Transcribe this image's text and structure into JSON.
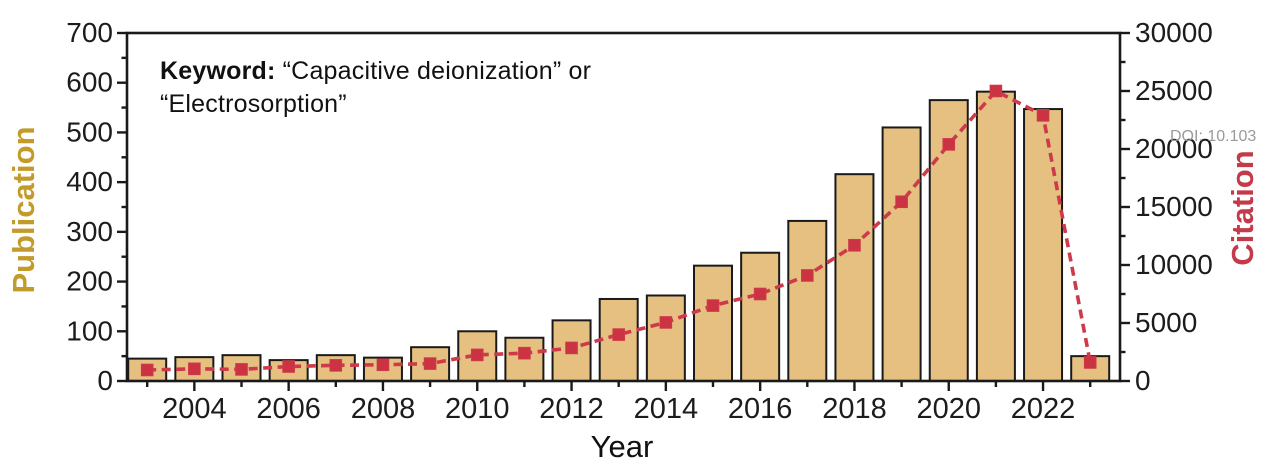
{
  "figure": {
    "annotation": {
      "bold": "Keyword:",
      "line1_rest": " “Capacitive deionization” or",
      "line2": "“Electrosorption”"
    },
    "watermark": "DOI: 10.103",
    "colors": {
      "background": "#ffffff",
      "frame": "#1a1a1a",
      "tick_label": "#1c1c1c",
      "bar_fill": "#e5c080",
      "bar_edge": "#1a1a1a",
      "line": "#ce3a4a",
      "marker_fill": "#cb3343",
      "left_label": "#c39b2a",
      "right_label": "#c43a4b",
      "watermark": "#9a9a9a"
    }
  },
  "chart_data": {
    "type": "bar",
    "subtype": "combo-bar-line-dual-axis",
    "title": "Keyword: “Capacitive deionization” or “Electrosorption”",
    "xlabel": "Year",
    "categories": [
      2003,
      2004,
      2005,
      2006,
      2007,
      2008,
      2009,
      2010,
      2011,
      2012,
      2013,
      2014,
      2015,
      2016,
      2017,
      2018,
      2019,
      2020,
      2021,
      2022,
      2023
    ],
    "series": [
      {
        "name": "Publication",
        "type": "bar",
        "axis": "left",
        "values": [
          45,
          48,
          52,
          42,
          52,
          47,
          68,
          100,
          87,
          122,
          165,
          172,
          232,
          258,
          322,
          416,
          510,
          565,
          582,
          547,
          50
        ]
      },
      {
        "name": "Citation",
        "type": "line",
        "axis": "right",
        "marker": "square",
        "line_style": "dashed",
        "values": [
          950,
          1050,
          1000,
          1250,
          1350,
          1400,
          1500,
          2250,
          2400,
          2850,
          4000,
          5050,
          6500,
          7500,
          9100,
          11700,
          15450,
          20400,
          25000,
          22900,
          1600
        ]
      }
    ],
    "left_axis": {
      "label": "Publication",
      "min": 0,
      "max": 700,
      "major_step": 100,
      "minor_step": 50,
      "tick_labels": [
        "0",
        "100",
        "200",
        "300",
        "400",
        "500",
        "600",
        "700"
      ]
    },
    "right_axis": {
      "label": "Citation",
      "min": 0,
      "max": 30000,
      "major_step": 5000,
      "minor_step": 2500,
      "tick_labels": [
        "0",
        "5000",
        "10000",
        "15000",
        "20000",
        "25000",
        "30000"
      ]
    },
    "x_axis": {
      "label": "Year",
      "labeled_ticks": [
        2004,
        2006,
        2008,
        2010,
        2012,
        2014,
        2016,
        2018,
        2020,
        2022
      ],
      "minor_tick_every_year": true
    },
    "grid": false,
    "legend": "none"
  }
}
